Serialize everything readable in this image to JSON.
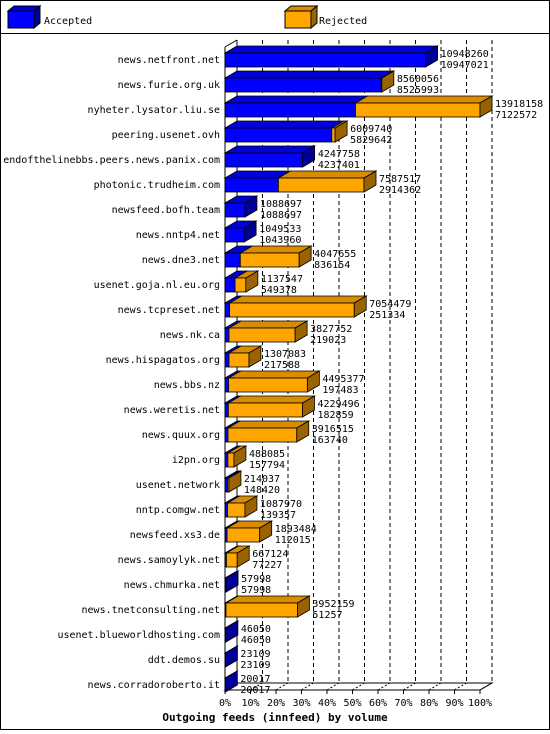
{
  "chart_data": {
    "type": "bar",
    "orientation": "horizontal",
    "stacked": true,
    "title": "Outgoing feeds (innfeed) by volume",
    "legend_position": "top",
    "x_ticks": [
      "0%",
      "10%",
      "20%",
      "30%",
      "40%",
      "50%",
      "60%",
      "70%",
      "80%",
      "90%",
      "100%"
    ],
    "xlim": [
      0,
      100
    ],
    "grid": true,
    "max_total": 13918158,
    "series": [
      {
        "name": "Accepted",
        "color": "#0000ff"
      },
      {
        "name": "Rejected",
        "color": "#ffa500"
      }
    ],
    "rows": [
      {
        "label": "news.netfront.net",
        "total": 10948260,
        "accepted": 10947021
      },
      {
        "label": "news.furie.org.uk",
        "total": 8560056,
        "accepted": 8525993
      },
      {
        "label": "nyheter.lysator.liu.se",
        "total": 13918158,
        "accepted": 7122572
      },
      {
        "label": "peering.usenet.ovh",
        "total": 6009740,
        "accepted": 5829642
      },
      {
        "label": "endofthelinebbs.peers.news.panix.com",
        "total": 4247758,
        "accepted": 4237401
      },
      {
        "label": "photonic.trudheim.com",
        "total": 7587517,
        "accepted": 2914362
      },
      {
        "label": "newsfeed.bofh.team",
        "total": 1088697,
        "accepted": 1088697
      },
      {
        "label": "news.nntp4.net",
        "total": 1049533,
        "accepted": 1043960
      },
      {
        "label": "news.dne3.net",
        "total": 4047655,
        "accepted": 836154
      },
      {
        "label": "usenet.goja.nl.eu.org",
        "total": 1137547,
        "accepted": 549378
      },
      {
        "label": "news.tcpreset.net",
        "total": 7054479,
        "accepted": 251334
      },
      {
        "label": "news.nk.ca",
        "total": 3827752,
        "accepted": 219023
      },
      {
        "label": "news.hispagatos.org",
        "total": 1307083,
        "accepted": 217588
      },
      {
        "label": "news.bbs.nz",
        "total": 4495377,
        "accepted": 197483
      },
      {
        "label": "news.weretis.net",
        "total": 4229496,
        "accepted": 182859
      },
      {
        "label": "news.quux.org",
        "total": 3916515,
        "accepted": 163740
      },
      {
        "label": "i2pn.org",
        "total": 488085,
        "accepted": 157794
      },
      {
        "label": "usenet.network",
        "total": 214037,
        "accepted": 148420
      },
      {
        "label": "nntp.comgw.net",
        "total": 1087970,
        "accepted": 139357
      },
      {
        "label": "newsfeed.xs3.de",
        "total": 1893484,
        "accepted": 112015
      },
      {
        "label": "news.samoylyk.net",
        "total": 667124,
        "accepted": 77227
      },
      {
        "label": "news.chmurka.net",
        "total": 57998,
        "accepted": 57998
      },
      {
        "label": "news.tnetconsulting.net",
        "total": 3952159,
        "accepted": 51257
      },
      {
        "label": "usenet.blueworldhosting.com",
        "total": 46050,
        "accepted": 46050
      },
      {
        "label": "ddt.demos.su",
        "total": 23109,
        "accepted": 23109
      },
      {
        "label": "news.corradoroberto.it",
        "total": 20017,
        "accepted": 20017
      }
    ]
  }
}
